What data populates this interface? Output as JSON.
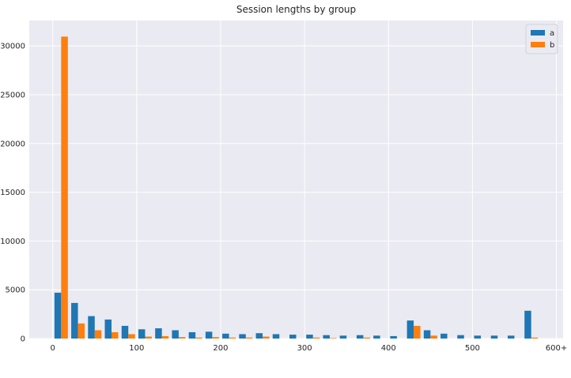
{
  "chart_data": {
    "type": "bar",
    "title": "Session lengths by group",
    "xlabel": "",
    "ylabel": "",
    "xlim": [
      -28,
      608
    ],
    "ylim": [
      0,
      32600
    ],
    "x_ticks": [
      0,
      100,
      200,
      300,
      400,
      500,
      600
    ],
    "x_tick_labels": [
      "0",
      "100",
      "200",
      "300",
      "400",
      "500",
      "600+"
    ],
    "y_ticks": [
      0,
      5000,
      10000,
      15000,
      20000,
      25000,
      30000
    ],
    "y_tick_labels": [
      "0",
      "5000",
      "10000",
      "15000",
      "20000",
      "25000",
      "30000"
    ],
    "bin_width": 20,
    "bin_starts": [
      0,
      20,
      40,
      60,
      80,
      100,
      120,
      140,
      160,
      180,
      200,
      220,
      240,
      260,
      280,
      300,
      320,
      340,
      360,
      380,
      400,
      420,
      440,
      460,
      480,
      500,
      520,
      540,
      560
    ],
    "grid": true,
    "legend_position": "top-right",
    "series": [
      {
        "name": "a",
        "color": "#1f77b4",
        "values": [
          4700,
          3650,
          2300,
          1950,
          1300,
          950,
          1050,
          850,
          650,
          700,
          500,
          450,
          550,
          450,
          400,
          400,
          350,
          300,
          350,
          300,
          250,
          1850,
          850,
          500,
          350,
          300,
          300,
          300,
          2850
        ]
      },
      {
        "name": "b",
        "color": "#ff7f0e",
        "values": [
          30950,
          1550,
          850,
          650,
          450,
          200,
          250,
          150,
          100,
          150,
          100,
          100,
          200,
          0,
          0,
          100,
          50,
          0,
          100,
          0,
          0,
          1300,
          300,
          0,
          0,
          0,
          0,
          0,
          100
        ]
      }
    ]
  }
}
